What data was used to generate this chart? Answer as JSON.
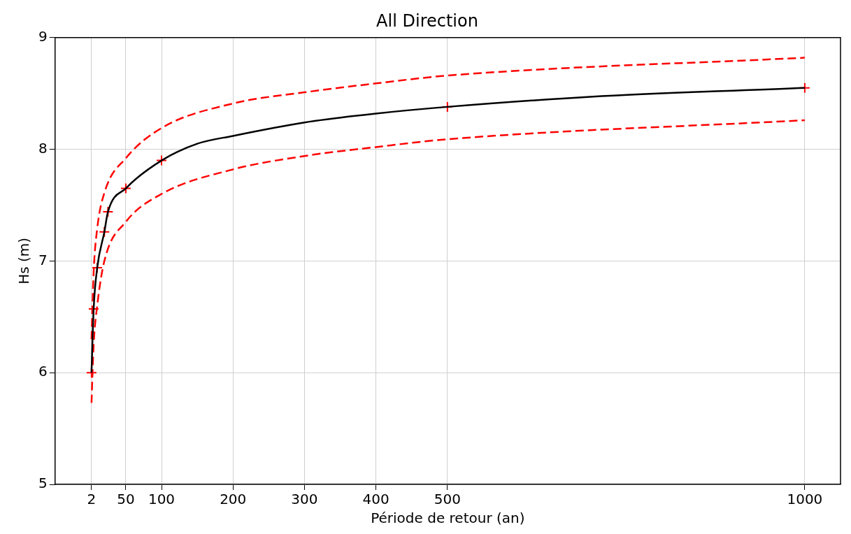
{
  "chart_data": {
    "type": "line",
    "title": "All Direction",
    "xlabel": "Période de retour (an)",
    "ylabel": "Hs (m)",
    "xlim": [
      -49,
      1050
    ],
    "ylim": [
      5,
      9
    ],
    "xticks": [
      2,
      50,
      100,
      200,
      300,
      400,
      500,
      1000
    ],
    "yticks": [
      5,
      6,
      7,
      8,
      9
    ],
    "grid": true,
    "legend": false,
    "series": [
      {
        "color": "#000000",
        "marker": "none",
        "line_style": "solid",
        "x": [
          2,
          5,
          10,
          20,
          25,
          50,
          100,
          150,
          200,
          300,
          400,
          500,
          700,
          1000
        ],
        "values": [
          6.0,
          6.57,
          6.94,
          7.26,
          7.44,
          7.65,
          7.9,
          8.05,
          8.12,
          8.24,
          8.32,
          8.38,
          8.47,
          8.55
        ]
      },
      {
        "color": "#ff0000",
        "marker": "none",
        "line_style": "dashed",
        "x": [
          2,
          5,
          10,
          20,
          50,
          100,
          200,
          300,
          400,
          500,
          1000
        ],
        "values": [
          6.3,
          6.9,
          7.29,
          7.61,
          7.92,
          8.19,
          8.41,
          8.51,
          8.59,
          8.66,
          8.82
        ]
      },
      {
        "color": "#ff0000",
        "marker": "none",
        "line_style": "dashed",
        "x": [
          2,
          5,
          10,
          20,
          50,
          100,
          200,
          300,
          400,
          500,
          1000
        ],
        "values": [
          5.73,
          6.25,
          6.6,
          7.0,
          7.35,
          7.6,
          7.82,
          7.94,
          8.02,
          8.09,
          8.26
        ]
      },
      {
        "type": "scatter",
        "color": "#ff0000",
        "marker": "cross",
        "x": [
          2,
          5,
          10,
          20,
          25,
          50,
          100,
          500,
          1000
        ],
        "values": [
          6.0,
          6.57,
          6.94,
          7.26,
          7.44,
          7.65,
          7.9,
          8.38,
          8.55
        ]
      }
    ]
  }
}
